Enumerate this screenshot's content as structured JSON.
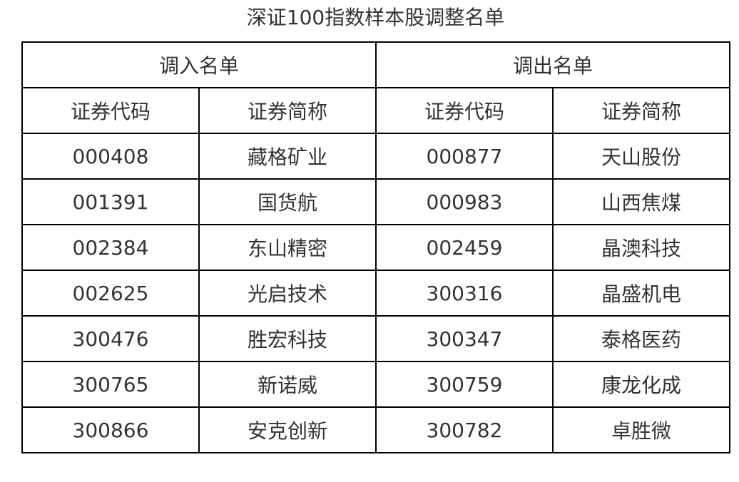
{
  "title": "深证100指数样本股调整名单",
  "groups": [
    "调入名单",
    "调出名单"
  ],
  "columns": [
    "证券代码",
    "证券简称",
    "证券代码",
    "证券简称"
  ],
  "rows": [
    [
      "000408",
      "藏格矿业",
      "000877",
      "天山股份"
    ],
    [
      "001391",
      "国货航",
      "000983",
      "山西焦煤"
    ],
    [
      "002384",
      "东山精密",
      "002459",
      "晶澳科技"
    ],
    [
      "002625",
      "光启技术",
      "300316",
      "晶盛机电"
    ],
    [
      "300476",
      "胜宏科技",
      "300347",
      "泰格医药"
    ],
    [
      "300765",
      "新诺威",
      "300759",
      "康龙化成"
    ],
    [
      "300866",
      "安克创新",
      "300782",
      "卓胜微"
    ]
  ]
}
